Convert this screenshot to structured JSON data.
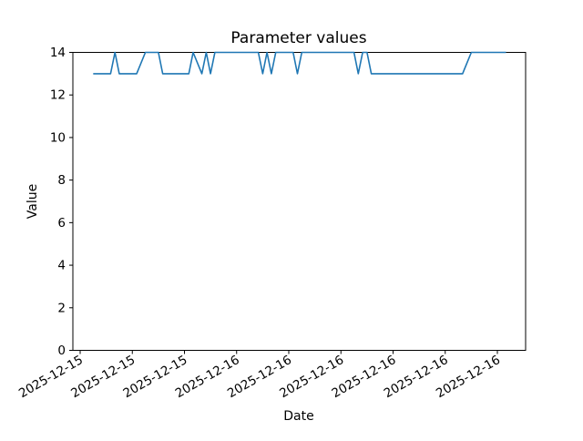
{
  "chart_data": {
    "type": "line",
    "title": "Parameter values",
    "xlabel": "Date",
    "ylabel": "Value",
    "ylim": [
      0,
      14
    ],
    "yticks": [
      0,
      2,
      4,
      6,
      8,
      10,
      12,
      14
    ],
    "xtick_labels": [
      "2025-12-15",
      "2025-12-15",
      "2025-12-15",
      "2025-12-16",
      "2025-12-16",
      "2025-12-16",
      "2025-12-16",
      "2025-12-16",
      "2025-12-16"
    ],
    "xtick_times_estimate": [
      "2025-12-15 15:00",
      "2025-12-15 18:00",
      "2025-12-15 21:00",
      "2025-12-16 00:00",
      "2025-12-16 03:00",
      "2025-12-16 06:00",
      "2025-12-16 09:00",
      "2025-12-16 12:00",
      "2025-12-16 15:00"
    ],
    "xtick_rotation_deg": 30,
    "grid": false,
    "legend": false,
    "line_color": "#1f77b4",
    "series": [
      {
        "points": [
          [
            "2025-12-15 15:45",
            13
          ],
          [
            "2025-12-15 16:45",
            13
          ],
          [
            "2025-12-15 17:00",
            14
          ],
          [
            "2025-12-15 17:15",
            13
          ],
          [
            "2025-12-15 18:15",
            13
          ],
          [
            "2025-12-15 18:45",
            14
          ],
          [
            "2025-12-15 19:30",
            14
          ],
          [
            "2025-12-15 19:45",
            13
          ],
          [
            "2025-12-15 21:15",
            13
          ],
          [
            "2025-12-15 21:30",
            14
          ],
          [
            "2025-12-15 22:00",
            13
          ],
          [
            "2025-12-15 22:15",
            14
          ],
          [
            "2025-12-15 22:30",
            13
          ],
          [
            "2025-12-15 22:45",
            14
          ],
          [
            "2025-12-16 01:15",
            14
          ],
          [
            "2025-12-16 01:30",
            13
          ],
          [
            "2025-12-16 01:45",
            14
          ],
          [
            "2025-12-16 02:00",
            13
          ],
          [
            "2025-12-16 02:15",
            14
          ],
          [
            "2025-12-16 03:15",
            14
          ],
          [
            "2025-12-16 03:30",
            13
          ],
          [
            "2025-12-16 03:45",
            14
          ],
          [
            "2025-12-16 06:45",
            14
          ],
          [
            "2025-12-16 07:00",
            13
          ],
          [
            "2025-12-16 07:15",
            14
          ],
          [
            "2025-12-16 07:30",
            14
          ],
          [
            "2025-12-16 07:45",
            13
          ],
          [
            "2025-12-16 13:00",
            13
          ],
          [
            "2025-12-16 13:30",
            14
          ],
          [
            "2025-12-16 15:30",
            14
          ]
        ]
      }
    ]
  }
}
